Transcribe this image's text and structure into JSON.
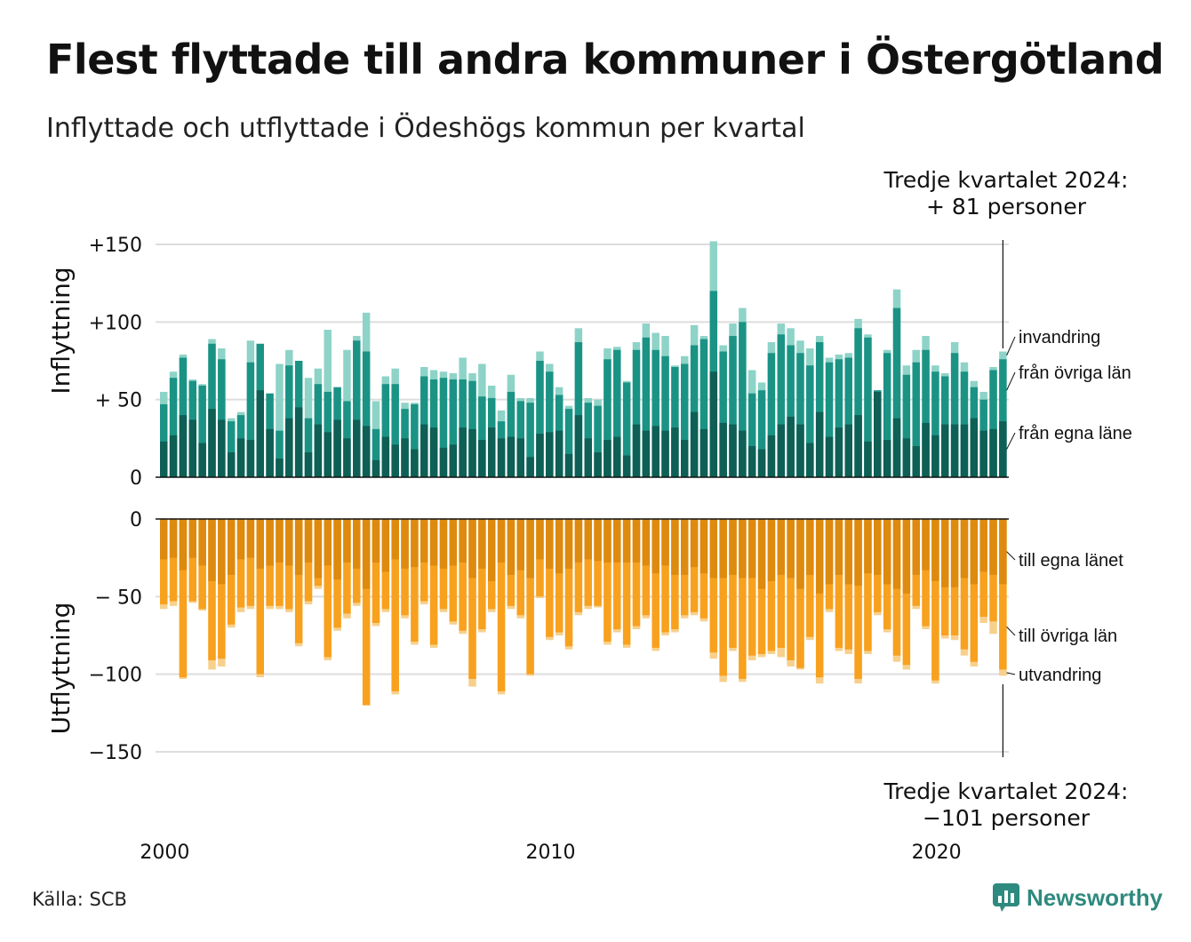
{
  "title": "Flest flyttade till andra kommuner i Östergötland",
  "subtitle": "Inflyttade och utflyttade i Ödeshögs kommun per kvartal",
  "callout_top": {
    "line1": "Tredje kvartalet 2024:",
    "line2": "+ 81 personer"
  },
  "callout_bottom": {
    "line1": "Tredje kvartalet 2024:",
    "line2": "−101 personer"
  },
  "source": "Källa: SCB",
  "brand": "Newsworthy",
  "colors": {
    "in_own": "#0e5f55",
    "in_other": "#1a9385",
    "in_immig": "#8ed3c7",
    "out_own": "#dd8a0f",
    "out_other": "#f8a11e",
    "out_emig": "#f7d08c",
    "grid": "#dddddd",
    "axis": "#111111"
  },
  "chart_data": {
    "type": "bar",
    "x_start": "2000 Q1",
    "x_end": "2024 Q3",
    "x_ticks": [
      "2000",
      "2010",
      "2020"
    ],
    "panels": [
      {
        "name": "Inflyttning",
        "y_ticks": [
          "+150",
          "+100",
          "+ 50",
          "0"
        ],
        "y_tick_values": [
          150,
          100,
          50,
          0
        ],
        "ylim": [
          0,
          150
        ],
        "series_names": [
          "från egna läne",
          "från övriga län",
          "invandring"
        ],
        "totals": [
          55,
          68,
          79,
          63,
          60,
          89,
          83,
          38,
          42,
          88,
          60,
          44,
          73,
          82,
          64,
          64,
          70,
          95,
          58,
          82,
          91,
          106,
          49,
          65,
          70,
          48,
          48,
          71,
          69,
          68,
          67,
          77,
          67,
          73,
          59,
          43,
          66,
          51,
          51,
          81,
          73,
          58,
          46,
          96,
          51,
          50,
          83,
          84,
          62,
          87,
          99,
          93,
          91,
          72,
          78,
          98,
          91,
          152,
          85,
          99,
          109,
          69,
          61,
          87,
          99,
          96,
          88,
          83,
          91,
          77,
          79,
          80,
          102,
          92,
          56,
          82,
          121,
          72,
          82,
          91,
          72,
          67,
          87,
          74,
          62,
          55,
          71,
          81
        ],
        "series": [
          {
            "name": "från egna läne",
            "values": [
              23,
              27,
              40,
              37,
              22,
              44,
              37,
              16,
              25,
              24,
              56,
              31,
              12,
              38,
              45,
              16,
              34,
              29,
              37,
              25,
              37,
              33,
              11,
              26,
              21,
              25,
              18,
              34,
              32,
              19,
              21,
              32,
              31,
              24,
              32,
              25,
              26,
              25,
              13,
              28,
              29,
              30,
              15,
              40,
              25,
              16,
              24,
              26,
              14,
              34,
              30,
              33,
              30,
              32,
              24,
              42,
              31,
              68,
              35,
              34,
              30,
              20,
              18,
              27,
              34,
              39,
              34,
              22,
              42,
              26,
              32,
              34,
              40,
              23,
              55,
              24,
              38,
              25,
              20,
              35,
              27,
              34,
              34,
              34,
              38,
              30,
              31,
              36
            ]
          },
          {
            "name": "från övriga län",
            "values": [
              47,
              64,
              77,
              62,
              59,
              86,
              76,
              36,
              40,
              74,
              86,
              54,
              30,
              72,
              75,
              38,
              60,
              55,
              58,
              49,
              88,
              81,
              31,
              60,
              60,
              44,
              47,
              65,
              63,
              64,
              63,
              63,
              62,
              52,
              51,
              36,
              55,
              49,
              48,
              75,
              68,
              53,
              44,
              87,
              48,
              46,
              76,
              82,
              61,
              82,
              90,
              82,
              78,
              71,
              73,
              85,
              89,
              120,
              81,
              91,
              100,
              54,
              56,
              80,
              92,
              85,
              80,
              72,
              87,
              74,
              76,
              77,
              96,
              90,
              56,
              80,
              109,
              66,
              74,
              82,
              68,
              65,
              80,
              68,
              58,
              50,
              69,
              76
            ]
          },
          {
            "name": "invandring",
            "values": [
              55,
              68,
              79,
              63,
              60,
              89,
              83,
              38,
              42,
              88,
              60,
              44,
              73,
              82,
              64,
              64,
              70,
              95,
              58,
              82,
              91,
              106,
              49,
              65,
              70,
              48,
              48,
              71,
              69,
              68,
              67,
              77,
              67,
              73,
              59,
              43,
              66,
              51,
              51,
              81,
              73,
              58,
              46,
              96,
              51,
              50,
              83,
              84,
              62,
              87,
              99,
              93,
              91,
              72,
              78,
              98,
              91,
              152,
              85,
              99,
              109,
              69,
              61,
              87,
              99,
              96,
              88,
              83,
              91,
              77,
              79,
              80,
              102,
              92,
              56,
              82,
              121,
              72,
              82,
              91,
              72,
              67,
              87,
              74,
              62,
              55,
              71,
              81
            ]
          }
        ]
      },
      {
        "name": "Utflyttning",
        "y_ticks": [
          "0",
          "− 50",
          "−100",
          "−150"
        ],
        "y_tick_values": [
          0,
          -50,
          -100,
          -150
        ],
        "ylim": [
          -150,
          0
        ],
        "series_names": [
          "till egna länet",
          "till övriga län",
          "utvandring"
        ],
        "totals": [
          -58,
          -56,
          -103,
          -54,
          -59,
          -97,
          -95,
          -70,
          -60,
          -58,
          -102,
          -58,
          -58,
          -60,
          -82,
          -55,
          -45,
          -91,
          -72,
          -64,
          -56,
          -120,
          -69,
          -60,
          -113,
          -64,
          -81,
          -55,
          -83,
          -60,
          -68,
          -74,
          -108,
          -73,
          -60,
          -113,
          -58,
          -64,
          -101,
          -51,
          -78,
          -75,
          -84,
          -62,
          -58,
          -57,
          -81,
          -73,
          -83,
          -71,
          -64,
          -85,
          -75,
          -73,
          -64,
          -62,
          -66,
          -90,
          -105,
          -85,
          -105,
          -91,
          -89,
          -87,
          -89,
          -95,
          -97,
          -78,
          -106,
          -60,
          -85,
          -87,
          -106,
          -87,
          -62,
          -73,
          -92,
          -97,
          -58,
          -71,
          -106,
          -77,
          -78,
          -88,
          -95,
          -67,
          -74,
          -101
        ],
        "series": [
          {
            "name": "till egna länet",
            "values": [
              -26,
              -25,
              -33,
              -25,
              -30,
              -40,
              -42,
              -36,
              -26,
              -25,
              -32,
              -30,
              -28,
              -30,
              -36,
              -28,
              -38,
              -30,
              -39,
              -28,
              -32,
              -45,
              -28,
              -34,
              -26,
              -32,
              -31,
              -28,
              -30,
              -32,
              -30,
              -28,
              -38,
              -32,
              -40,
              -28,
              -36,
              -33,
              -38,
              -26,
              -32,
              -35,
              -32,
              -28,
              -26,
              -27,
              -28,
              -28,
              -28,
              -28,
              -30,
              -35,
              -30,
              -36,
              -36,
              -31,
              -35,
              -38,
              -38,
              -36,
              -38,
              -38,
              -45,
              -40,
              -36,
              -38,
              -45,
              -36,
              -48,
              -42,
              -36,
              -42,
              -43,
              -35,
              -36,
              -42,
              -45,
              -48,
              -36,
              -33,
              -40,
              -44,
              -44,
              -38,
              -42,
              -34,
              -36,
              -42
            ]
          },
          {
            "name": "till övriga län",
            "values": [
              -55,
              -53,
              -102,
              -53,
              -58,
              -91,
              -90,
              -68,
              -57,
              -56,
              -100,
              -56,
              -56,
              -58,
              -80,
              -53,
              -43,
              -89,
              -70,
              -61,
              -54,
              -120,
              -67,
              -58,
              -111,
              -62,
              -79,
              -53,
              -81,
              -58,
              -66,
              -72,
              -103,
              -71,
              -58,
              -111,
              -56,
              -62,
              -100,
              -50,
              -76,
              -73,
              -82,
              -60,
              -56,
              -56,
              -79,
              -71,
              -81,
              -69,
              -62,
              -83,
              -73,
              -71,
              -62,
              -60,
              -64,
              -86,
              -101,
              -83,
              -103,
              -88,
              -87,
              -85,
              -83,
              -91,
              -96,
              -76,
              -102,
              -58,
              -83,
              -84,
              -103,
              -85,
              -60,
              -71,
              -88,
              -94,
              -56,
              -69,
              -104,
              -75,
              -75,
              -84,
              -92,
              -63,
              -66,
              -97
            ]
          },
          {
            "name": "utvandring",
            "values": [
              -58,
              -56,
              -103,
              -54,
              -59,
              -97,
              -95,
              -70,
              -60,
              -58,
              -102,
              -58,
              -58,
              -60,
              -82,
              -55,
              -45,
              -91,
              -72,
              -64,
              -56,
              -120,
              -69,
              -60,
              -113,
              -64,
              -81,
              -55,
              -83,
              -60,
              -68,
              -74,
              -108,
              -73,
              -60,
              -113,
              -58,
              -64,
              -101,
              -51,
              -78,
              -75,
              -84,
              -62,
              -58,
              -57,
              -81,
              -73,
              -83,
              -71,
              -64,
              -85,
              -75,
              -73,
              -64,
              -62,
              -66,
              -90,
              -105,
              -85,
              -105,
              -91,
              -89,
              -87,
              -89,
              -95,
              -97,
              -78,
              -106,
              -60,
              -85,
              -87,
              -106,
              -87,
              -62,
              -73,
              -92,
              -97,
              -58,
              -71,
              -106,
              -77,
              -78,
              -88,
              -95,
              -67,
              -74,
              -101
            ]
          }
        ]
      }
    ]
  }
}
